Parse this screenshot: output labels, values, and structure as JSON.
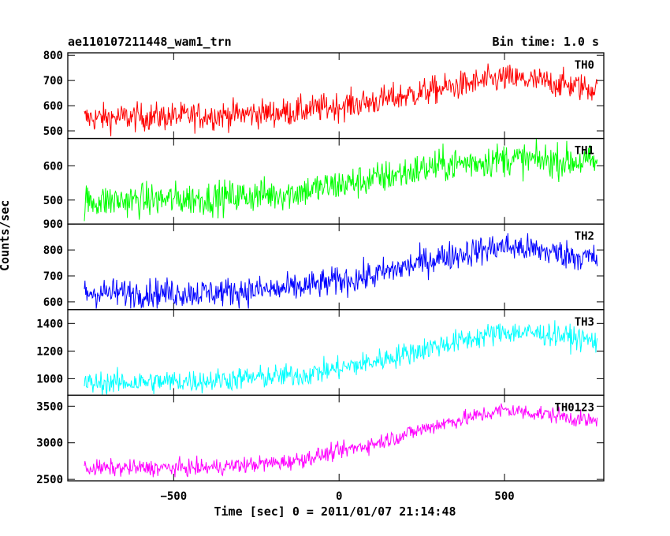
{
  "header": {
    "title": "ae110107211448_wam1_trn",
    "bin_time": "Bin time: 1.0 s"
  },
  "colors": {
    "TH0": "#ff0000",
    "TH1": "#00ff00",
    "TH2": "#0000ff",
    "TH3": "#00ffff",
    "TH0123": "#ff00ff",
    "frame": "#000000"
  },
  "chart_data": {
    "type": "line",
    "xlabel": "Time [sec] 0 = 2011/01/07 21:14:48",
    "ylabel": "Counts/sec",
    "xlim": [
      -820,
      800
    ],
    "x_range_data": [
      -770,
      780
    ],
    "x_ticks": [
      -500,
      0,
      500
    ],
    "x_tick_labels": [
      "−500",
      "0",
      "500"
    ],
    "grid": false,
    "panels": [
      {
        "name": "TH0",
        "ylim": [
          470,
          810
        ],
        "y_ticks": [
          500,
          600,
          700,
          800
        ],
        "noise": 40,
        "trend_x": [
          -770,
          -400,
          -150,
          100,
          300,
          500,
          650,
          780
        ],
        "trend_y": [
          550,
          560,
          575,
          615,
          665,
          710,
          690,
          665
        ]
      },
      {
        "name": "TH1",
        "ylim": [
          430,
          680
        ],
        "y_ticks": [
          500,
          600
        ],
        "noise": 35,
        "trend_x": [
          -770,
          -400,
          -150,
          100,
          300,
          500,
          650,
          780
        ],
        "trend_y": [
          495,
          505,
          520,
          560,
          600,
          620,
          615,
          610
        ]
      },
      {
        "name": "TH2",
        "ylim": [
          570,
          900
        ],
        "y_ticks": [
          600,
          700,
          800,
          900
        ],
        "noise": 40,
        "trend_x": [
          -770,
          -400,
          -150,
          100,
          300,
          500,
          650,
          780
        ],
        "trend_y": [
          635,
          635,
          650,
          700,
          770,
          815,
          790,
          765
        ]
      },
      {
        "name": "TH3",
        "ylim": [
          880,
          1500
        ],
        "y_ticks": [
          1000,
          1200,
          1400
        ],
        "noise": 60,
        "trend_x": [
          -770,
          -400,
          -100,
          100,
          300,
          500,
          650,
          780
        ],
        "trend_y": [
          965,
          985,
          1030,
          1120,
          1240,
          1340,
          1320,
          1270
        ]
      },
      {
        "name": "TH0123",
        "ylim": [
          2480,
          3650
        ],
        "y_ticks": [
          2500,
          3000,
          3500
        ],
        "noise": 80,
        "trend_x": [
          -770,
          -400,
          -150,
          100,
          300,
          500,
          650,
          780
        ],
        "trend_y": [
          2650,
          2660,
          2740,
          2980,
          3250,
          3450,
          3380,
          3280
        ]
      }
    ]
  }
}
